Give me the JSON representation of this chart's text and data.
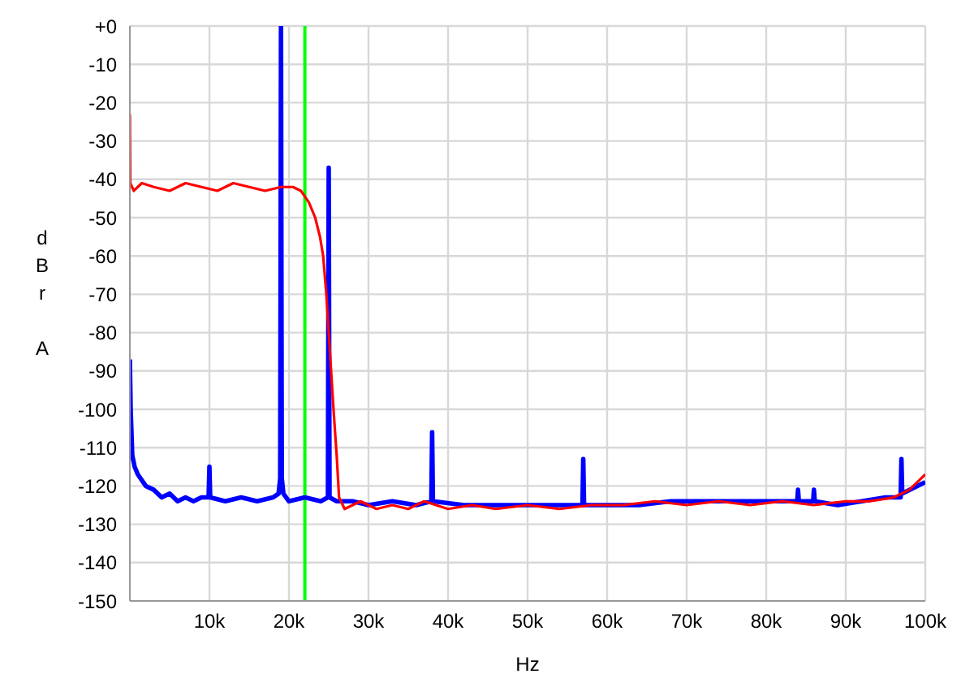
{
  "chart_data": {
    "type": "line",
    "xlabel": "Hz",
    "ylabel": "dBr A",
    "xlim": [
      0,
      100000
    ],
    "xticks": [
      {
        "value": 10000,
        "label": "10k"
      },
      {
        "value": 20000,
        "label": "20k"
      },
      {
        "value": 30000,
        "label": "30k"
      },
      {
        "value": 40000,
        "label": "40k"
      },
      {
        "value": 50000,
        "label": "50k"
      },
      {
        "value": 60000,
        "label": "60k"
      },
      {
        "value": 70000,
        "label": "70k"
      },
      {
        "value": 80000,
        "label": "80k"
      },
      {
        "value": 90000,
        "label": "90k"
      },
      {
        "value": 100000,
        "label": "100k"
      }
    ],
    "ylim": [
      -150,
      0
    ],
    "yticks": [
      -150,
      -140,
      -130,
      -120,
      -110,
      -100,
      -90,
      -80,
      -70,
      -60,
      -50,
      -40,
      -30,
      -20,
      -10,
      {
        "value": 0,
        "label": "+0"
      }
    ],
    "grid": true,
    "ref_lines": [
      {
        "axis": "x",
        "value": 22000,
        "color": "#00ff00"
      }
    ],
    "series": [
      {
        "color": "#0000ff",
        "x": [
          0,
          100,
          300,
          600,
          1000,
          2000,
          3000,
          4000,
          5000,
          6000,
          7000,
          8000,
          9000,
          9900,
          10000,
          10100,
          12000,
          14000,
          16000,
          18000,
          18700,
          18900,
          19000,
          19100,
          19300,
          20000,
          22000,
          24000,
          24900,
          25000,
          25100,
          26000,
          28000,
          30000,
          33000,
          36000,
          37900,
          38000,
          38100,
          42000,
          46000,
          50000,
          54000,
          56900,
          57000,
          57100,
          60000,
          64000,
          68000,
          72000,
          75000,
          78000,
          81000,
          83900,
          84000,
          84100,
          85900,
          86000,
          86100,
          89000,
          92000,
          95000,
          96900,
          97000,
          97100,
          99000,
          100000
        ],
        "values": [
          -87,
          -100,
          -112,
          -115,
          -117,
          -120,
          -121,
          -123,
          -122,
          -124,
          -123,
          -124,
          -123,
          -123,
          -115,
          -123,
          -124,
          -123,
          -124,
          -123,
          -122,
          -118,
          0,
          -118,
          -122,
          -124,
          -123,
          -124,
          -123,
          -37,
          -123,
          -124,
          -124,
          -125,
          -124,
          -125,
          -124,
          -106,
          -124,
          -125,
          -125,
          -125,
          -125,
          -125,
          -113,
          -125,
          -125,
          -125,
          -124,
          -124,
          -124,
          -124,
          -124,
          -124,
          -121,
          -124,
          -124,
          -121,
          -124,
          -125,
          -124,
          -123,
          -123,
          -113,
          -122,
          -120,
          -119
        ]
      },
      {
        "color": "#ff0000",
        "x": [
          0,
          50,
          500,
          1500,
          3000,
          5000,
          7000,
          9000,
          11000,
          13000,
          15000,
          17000,
          19000,
          20500,
          21500,
          22500,
          23300,
          23900,
          24300,
          24700,
          25000,
          25300,
          25600,
          26000,
          26300,
          27000,
          29000,
          31000,
          33000,
          35000,
          37000,
          40000,
          43000,
          46000,
          50000,
          54000,
          58000,
          62000,
          66000,
          70000,
          74000,
          78000,
          82000,
          86000,
          90000,
          93000,
          96000,
          98000,
          99500,
          100000
        ],
        "values": [
          -23,
          -41,
          -43,
          -41,
          -42,
          -43,
          -41,
          -42,
          -43,
          -41,
          -42,
          -43,
          -42,
          -42,
          -43,
          -46,
          -50,
          -55,
          -60,
          -70,
          -80,
          -90,
          -100,
          -112,
          -123,
          -126,
          -124,
          -126,
          -125,
          -126,
          -124,
          -126,
          -125,
          -126,
          -125,
          -126,
          -125,
          -125,
          -124,
          -125,
          -124,
          -125,
          -124,
          -125,
          -124,
          -124,
          -123,
          -121,
          -118,
          -117
        ]
      }
    ]
  }
}
